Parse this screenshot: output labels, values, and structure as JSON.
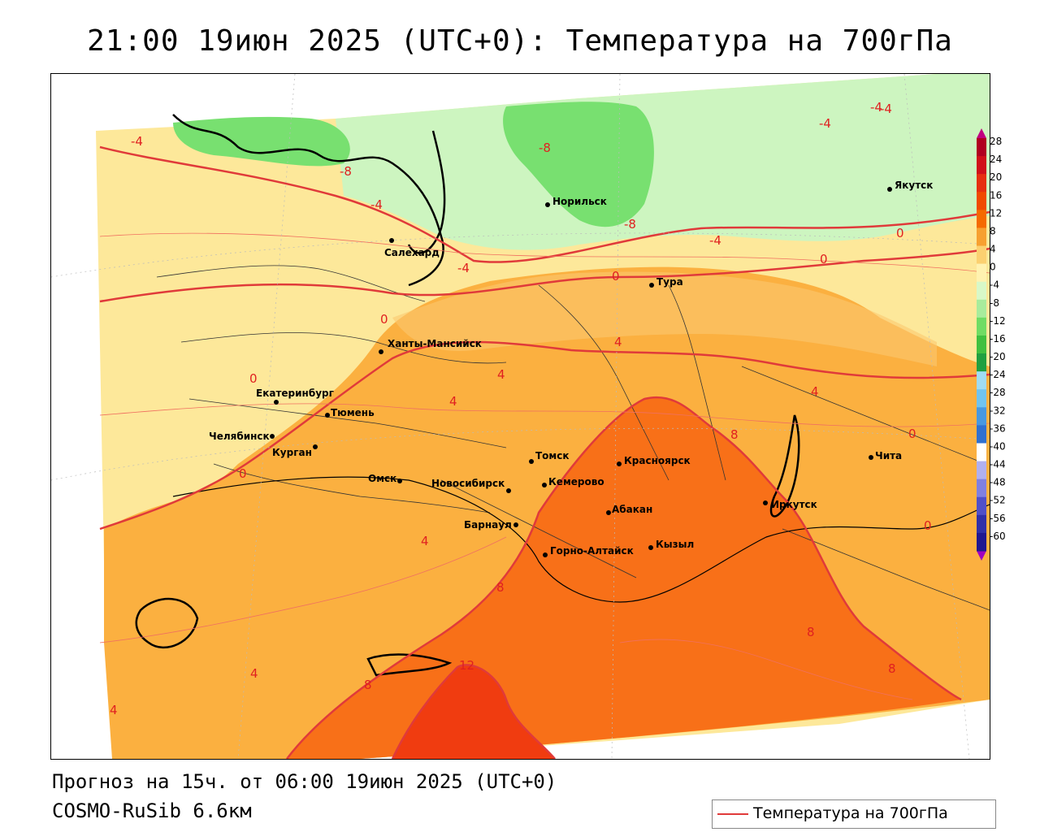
{
  "header": {
    "title": "21:00 19июн 2025 (UTC+0): Температура на 700гПа"
  },
  "footer": {
    "forecast": "Прогноз на 15ч. от 06:00 19июн 2025 (UTC+0)",
    "model": "COSMO-RuSib 6.6км"
  },
  "legend": {
    "label": "Температура на 700гПа",
    "line_color": "#e03a3a"
  },
  "scale": {
    "ticks": [
      "28",
      "24",
      "20",
      "16",
      "12",
      "8",
      "4",
      "0",
      "-4",
      "-8",
      "-12",
      "-16",
      "-20",
      "-24",
      "-28",
      "-32",
      "-36",
      "-40",
      "-44",
      "-48",
      "-52",
      "-56",
      "-60"
    ],
    "colors": [
      "#b00020",
      "#d0101a",
      "#e63010",
      "#f04a00",
      "#f56a00",
      "#f7a030",
      "#fbd070",
      "#fff2b0",
      "#d8f8c8",
      "#a8ec9c",
      "#70dc64",
      "#40c040",
      "#20a040",
      "#a0dcf4",
      "#70c4f0",
      "#4898e0",
      "#3070d0",
      "#ffffff",
      "#b0b0f0",
      "#8080e0",
      "#5050c8",
      "#3030a8",
      "#201890"
    ]
  },
  "cities": [
    {
      "name": "Якутск"
    },
    {
      "name": "Норильск"
    },
    {
      "name": "Салехард"
    },
    {
      "name": "Тура"
    },
    {
      "name": "Ханты-Мансийск"
    },
    {
      "name": "Екатеринбург"
    },
    {
      "name": "Тюмень"
    },
    {
      "name": "Челябинск"
    },
    {
      "name": "Курган"
    },
    {
      "name": "Омск"
    },
    {
      "name": "Томск"
    },
    {
      "name": "Новосибирск"
    },
    {
      "name": "Кемерово"
    },
    {
      "name": "Красноярск"
    },
    {
      "name": "Барнаул"
    },
    {
      "name": "Абакан"
    },
    {
      "name": "Иркутск"
    },
    {
      "name": "Чита"
    },
    {
      "name": "Горно-Алтайск"
    },
    {
      "name": "Кызыл"
    }
  ],
  "isolines": [
    "-4",
    "-8",
    "-8",
    "-4",
    "-4",
    "-4",
    "-8",
    "-4",
    "-4",
    "0",
    "0",
    "0",
    "0",
    "0",
    "0",
    "4",
    "4",
    "4",
    "4",
    "4",
    "4",
    "4",
    "8",
    "8",
    "8",
    "8",
    "8",
    "12",
    "0",
    "0",
    "-4"
  ],
  "colors": {
    "warm12": "#f04a00",
    "warm8": "#f87018",
    "warm4": "#fbb040",
    "mild0": "#fde89a",
    "cool-4": "#cdf5c0",
    "cold-8": "#78e070",
    "cold-12": "#44c850"
  }
}
